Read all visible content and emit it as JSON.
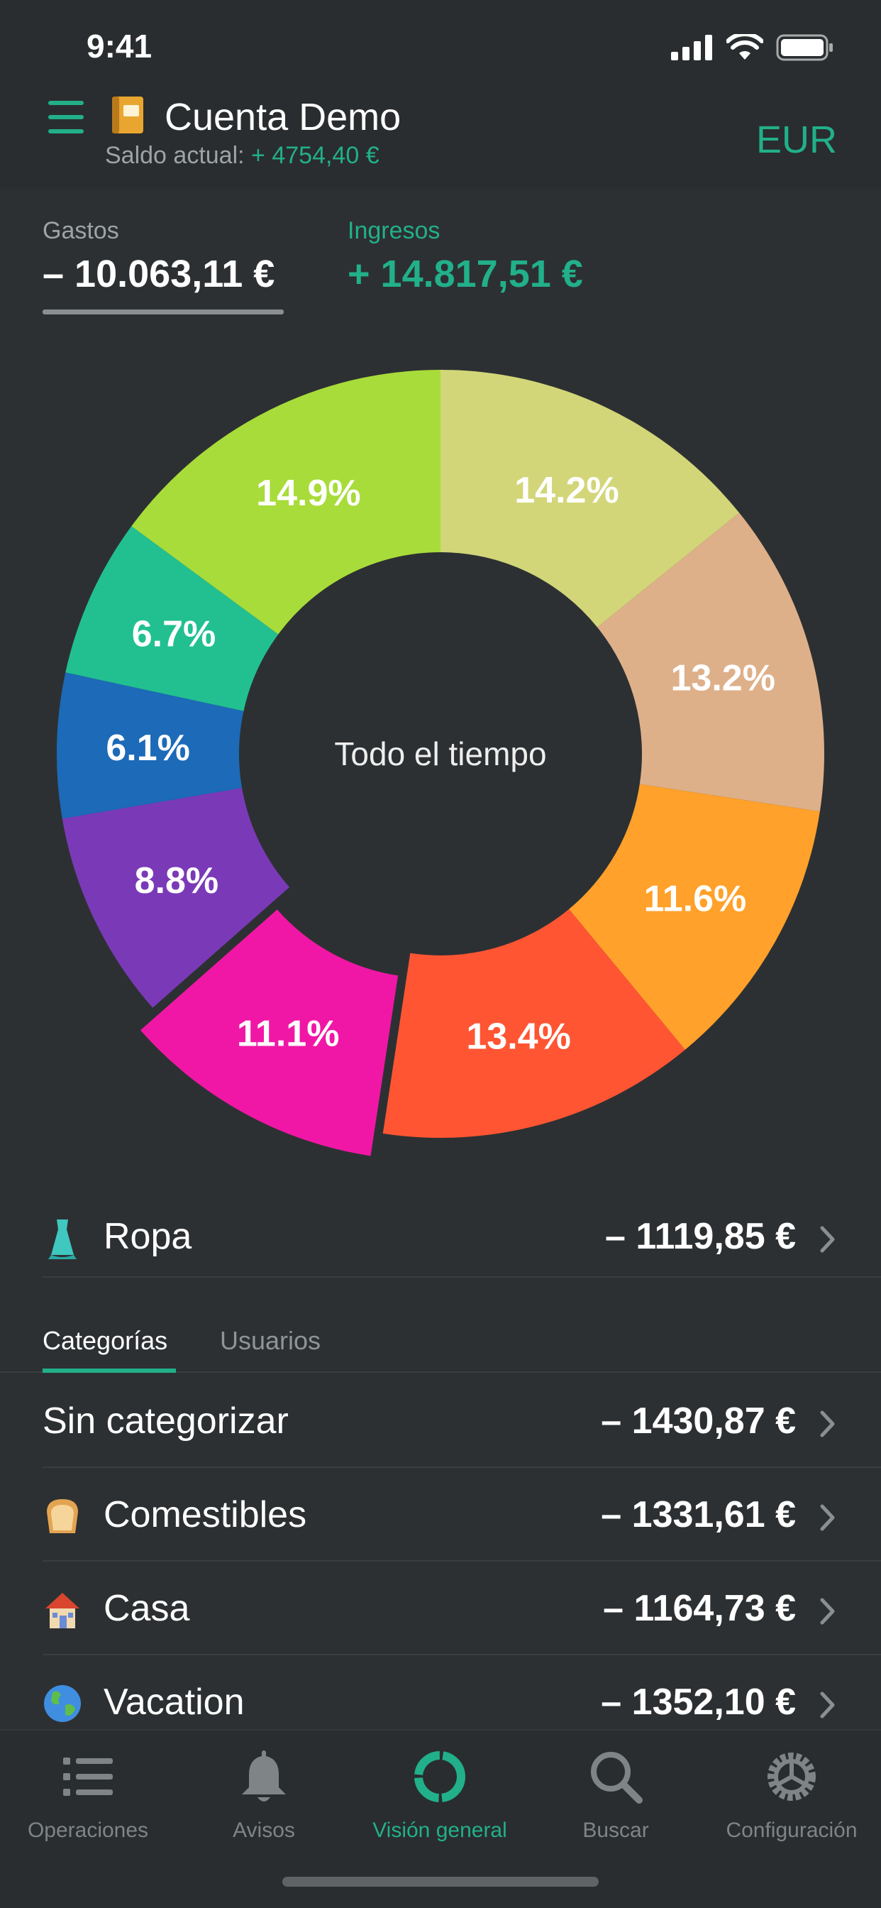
{
  "status_bar": {
    "time": "9:41"
  },
  "header": {
    "account_name": "Cuenta Demo",
    "balance_label": "Saldo actual:",
    "balance_value": "+ 4754,40 €",
    "currency": "EUR",
    "icons": [
      "menu-icon",
      "ledger-book-emoji"
    ]
  },
  "totals": {
    "expenses_label": "Gastos",
    "expenses_value": "– 10.063,11 €",
    "income_label": "Ingresos",
    "income_value": "+ 14.817,51 €"
  },
  "chart_data": {
    "type": "pie",
    "variant": "donut",
    "center_label": "Todo el tiempo",
    "slices": [
      {
        "label": "14.2%",
        "value": 14.2,
        "color": "#d2d679"
      },
      {
        "label": "13.2%",
        "value": 13.2,
        "color": "#deb08a"
      },
      {
        "label": "11.6%",
        "value": 11.6,
        "color": "#ffa12a"
      },
      {
        "label": "13.4%",
        "value": 13.4,
        "color": "#ff5533"
      },
      {
        "label": "11.1%",
        "value": 11.1,
        "color": "#f017a6",
        "exploded": true
      },
      {
        "label": "8.8%",
        "value": 8.8,
        "color": "#7a3ab8"
      },
      {
        "label": "6.1%",
        "value": 6.1,
        "color": "#1c6ab8"
      },
      {
        "label": "6.7%",
        "value": 6.7,
        "color": "#22c091"
      },
      {
        "label": "14.9%",
        "value": 14.9,
        "color": "#a8dc3a"
      }
    ]
  },
  "selected": {
    "emoji": "dress",
    "name": "Ropa",
    "amount": "– 1119,85 €"
  },
  "tabs": {
    "categories": "Categorías",
    "users": "Usuarios"
  },
  "categories": [
    {
      "emoji": "",
      "name": "Sin categorizar",
      "amount": "– 1430,87 €"
    },
    {
      "emoji": "bread",
      "name": "Comestibles",
      "amount": "– 1331,61 €"
    },
    {
      "emoji": "house",
      "name": "Casa",
      "amount": "– 1164,73 €"
    },
    {
      "emoji": "globe",
      "name": "Vacation",
      "amount": "– 1352,10 €"
    }
  ],
  "tabbar": {
    "items": [
      {
        "label": "Operaciones",
        "icon": "list-icon"
      },
      {
        "label": "Avisos",
        "icon": "bell-icon"
      },
      {
        "label": "Visión general",
        "icon": "donut-icon",
        "active": true
      },
      {
        "label": "Buscar",
        "icon": "search-icon"
      },
      {
        "label": "Configuración",
        "icon": "gear-icon"
      }
    ]
  },
  "colors": {
    "accent": "#21b08a",
    "background": "#2d3032",
    "bar": "#2a2d2f"
  }
}
